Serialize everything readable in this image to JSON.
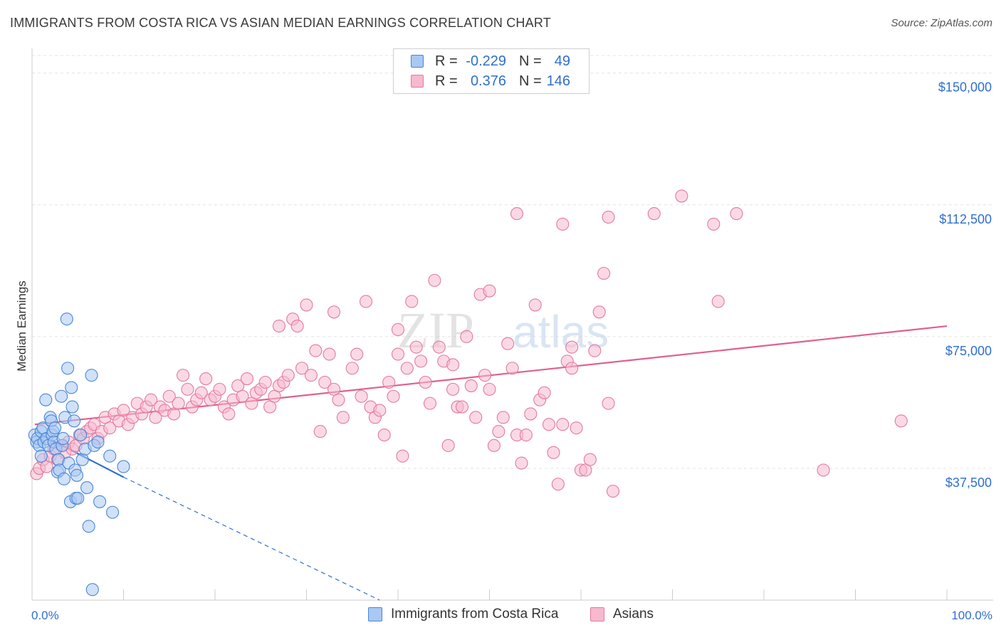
{
  "title": "IMMIGRANTS FROM COSTA RICA VS ASIAN MEDIAN EARNINGS CORRELATION CHART",
  "source": "Source: ZipAtlas.com",
  "watermark": {
    "zip": "ZIP",
    "atlas": "atlas"
  },
  "colors": {
    "blue_fill": "#a9c8f3",
    "blue_stroke": "#4a86d8",
    "blue_line": "#2f6fcf",
    "pink_fill": "#f7b9cd",
    "pink_stroke": "#e27a9f",
    "pink_line": "#e0608e",
    "axis_label": "#2f6fcf",
    "grid": "#e3e3e3"
  },
  "legend": {
    "rows": [
      {
        "r_label": "R =",
        "r_value": "-0.229",
        "n_label": "N =",
        "n_value": "49",
        "series": "blue"
      },
      {
        "r_label": "R =",
        "r_value": "0.376",
        "n_label": "N =",
        "n_value": "146",
        "series": "pink"
      }
    ]
  },
  "bottom_legend": {
    "blue": "Immigrants from Costa Rica",
    "pink": "Asians"
  },
  "chart_data": {
    "type": "scatter",
    "title": "IMMIGRANTS FROM COSTA RICA VS ASIAN MEDIAN EARNINGS CORRELATION CHART",
    "xlabel": "",
    "ylabel": "Median Earnings",
    "xlim": [
      0,
      100
    ],
    "ylim": [
      0,
      155000
    ],
    "x_tick_labels": {
      "left": "0.0%",
      "right": "100.0%"
    },
    "y_ticks": [
      {
        "value": 37500,
        "label": "$37,500"
      },
      {
        "value": 75000,
        "label": "$75,000"
      },
      {
        "value": 112500,
        "label": "$112,500"
      },
      {
        "value": 150000,
        "label": "$150,000"
      }
    ],
    "grid": true,
    "series": [
      {
        "name": "Immigrants from Costa Rica",
        "color": "blue",
        "trend": {
          "x0": 0.3,
          "y0": 48000,
          "x1": 10,
          "y1": 35000,
          "dashed_to_x": 38,
          "dashed_to_y": 0
        },
        "points": [
          [
            0.3,
            47000
          ],
          [
            0.5,
            45000
          ],
          [
            0.6,
            46000
          ],
          [
            0.8,
            44000
          ],
          [
            1.0,
            41000
          ],
          [
            1.0,
            48000
          ],
          [
            1.2,
            49000
          ],
          [
            1.3,
            45000
          ],
          [
            1.5,
            57000
          ],
          [
            1.6,
            46000
          ],
          [
            1.8,
            44000
          ],
          [
            2.0,
            52000
          ],
          [
            2.1,
            51000
          ],
          [
            2.2,
            47000
          ],
          [
            2.3,
            48000
          ],
          [
            2.4,
            45000
          ],
          [
            2.5,
            49000
          ],
          [
            2.6,
            43000
          ],
          [
            2.8,
            36500
          ],
          [
            2.9,
            40000
          ],
          [
            3.0,
            37000
          ],
          [
            3.2,
            58000
          ],
          [
            3.3,
            44000
          ],
          [
            3.4,
            46000
          ],
          [
            3.5,
            34500
          ],
          [
            3.6,
            52000
          ],
          [
            3.8,
            80000
          ],
          [
            3.9,
            66000
          ],
          [
            4.0,
            39000
          ],
          [
            4.2,
            28000
          ],
          [
            4.3,
            60500
          ],
          [
            4.4,
            55000
          ],
          [
            4.6,
            51000
          ],
          [
            4.7,
            37000
          ],
          [
            4.8,
            29000
          ],
          [
            4.9,
            35500
          ],
          [
            5.0,
            29000
          ],
          [
            5.3,
            47000
          ],
          [
            5.5,
            40000
          ],
          [
            5.8,
            43000
          ],
          [
            6.0,
            32000
          ],
          [
            6.2,
            21000
          ],
          [
            6.5,
            64000
          ],
          [
            6.8,
            44000
          ],
          [
            7.2,
            45000
          ],
          [
            7.4,
            28000
          ],
          [
            8.5,
            41000
          ],
          [
            8.8,
            25000
          ],
          [
            10.0,
            38000
          ],
          [
            6.6,
            3000
          ]
        ]
      },
      {
        "name": "Asians",
        "color": "pink",
        "trend": {
          "x0": 0.3,
          "y0": 50000,
          "x1": 100,
          "y1": 78000
        },
        "points": [
          [
            0.5,
            36000
          ],
          [
            0.8,
            37500
          ],
          [
            1.2,
            40000
          ],
          [
            1.6,
            38000
          ],
          [
            2.0,
            41000
          ],
          [
            2.4,
            43000
          ],
          [
            2.8,
            40000
          ],
          [
            3.2,
            44000
          ],
          [
            3.6,
            42000
          ],
          [
            4.0,
            45000
          ],
          [
            4.4,
            43000
          ],
          [
            4.8,
            44000
          ],
          [
            5.2,
            47000
          ],
          [
            5.6,
            46000
          ],
          [
            6.0,
            48000
          ],
          [
            6.4,
            49000
          ],
          [
            6.8,
            50000
          ],
          [
            7.2,
            46000
          ],
          [
            7.6,
            48000
          ],
          [
            8.0,
            52000
          ],
          [
            8.5,
            49000
          ],
          [
            9.0,
            53000
          ],
          [
            9.5,
            51000
          ],
          [
            10.0,
            54000
          ],
          [
            10.5,
            50000
          ],
          [
            11.0,
            52000
          ],
          [
            11.5,
            56000
          ],
          [
            12.0,
            53000
          ],
          [
            12.5,
            55000
          ],
          [
            13.0,
            57000
          ],
          [
            13.5,
            52000
          ],
          [
            14.0,
            55000
          ],
          [
            14.5,
            54000
          ],
          [
            15.0,
            58000
          ],
          [
            15.5,
            53000
          ],
          [
            16.0,
            56000
          ],
          [
            16.5,
            64000
          ],
          [
            17.0,
            60000
          ],
          [
            17.5,
            55000
          ],
          [
            18.0,
            57000
          ],
          [
            18.5,
            59000
          ],
          [
            19.0,
            63000
          ],
          [
            19.5,
            57000
          ],
          [
            20.0,
            58000
          ],
          [
            20.5,
            60000
          ],
          [
            21.0,
            55000
          ],
          [
            21.5,
            53000
          ],
          [
            22.0,
            57000
          ],
          [
            22.5,
            61000
          ],
          [
            23.0,
            58000
          ],
          [
            23.5,
            63000
          ],
          [
            24.0,
            56000
          ],
          [
            24.5,
            59000
          ],
          [
            25.0,
            60000
          ],
          [
            25.5,
            62000
          ],
          [
            26.0,
            55000
          ],
          [
            26.5,
            58000
          ],
          [
            27.0,
            61000
          ],
          [
            27.5,
            62000
          ],
          [
            28.0,
            64000
          ],
          [
            28.5,
            80000
          ],
          [
            29.0,
            78000
          ],
          [
            29.5,
            66000
          ],
          [
            30.0,
            84000
          ],
          [
            30.5,
            64000
          ],
          [
            31.0,
            71000
          ],
          [
            31.5,
            48000
          ],
          [
            32.0,
            62000
          ],
          [
            32.5,
            70000
          ],
          [
            33.0,
            60000
          ],
          [
            33.5,
            57000
          ],
          [
            34.0,
            52000
          ],
          [
            35.0,
            66000
          ],
          [
            35.5,
            70000
          ],
          [
            36.0,
            58000
          ],
          [
            36.5,
            85000
          ],
          [
            37.0,
            55000
          ],
          [
            37.5,
            52000
          ],
          [
            38.0,
            54000
          ],
          [
            38.5,
            47000
          ],
          [
            39.0,
            62000
          ],
          [
            39.5,
            58000
          ],
          [
            40.0,
            70000
          ],
          [
            40.5,
            41000
          ],
          [
            41.0,
            66000
          ],
          [
            41.5,
            85000
          ],
          [
            42.0,
            72000
          ],
          [
            42.5,
            68000
          ],
          [
            43.0,
            62000
          ],
          [
            43.5,
            56000
          ],
          [
            44.0,
            91000
          ],
          [
            44.5,
            72000
          ],
          [
            45.0,
            68000
          ],
          [
            45.5,
            44000
          ],
          [
            46.0,
            60000
          ],
          [
            46.5,
            55000
          ],
          [
            47.0,
            55000
          ],
          [
            47.5,
            75000
          ],
          [
            48.0,
            61000
          ],
          [
            48.5,
            52000
          ],
          [
            49.0,
            87000
          ],
          [
            49.5,
            64000
          ],
          [
            50.0,
            60000
          ],
          [
            50.5,
            44000
          ],
          [
            51.0,
            48000
          ],
          [
            51.5,
            52000
          ],
          [
            52.0,
            73000
          ],
          [
            52.5,
            66000
          ],
          [
            53.0,
            47000
          ],
          [
            53.5,
            39000
          ],
          [
            54.0,
            47000
          ],
          [
            54.5,
            53000
          ],
          [
            55.0,
            84000
          ],
          [
            55.5,
            57000
          ],
          [
            56.0,
            59000
          ],
          [
            56.5,
            50000
          ],
          [
            57.0,
            42000
          ],
          [
            57.5,
            33000
          ],
          [
            58.0,
            50000
          ],
          [
            58.5,
            68000
          ],
          [
            59.0,
            66000
          ],
          [
            59.5,
            49000
          ],
          [
            60.0,
            37000
          ],
          [
            60.5,
            37000
          ],
          [
            61.0,
            40000
          ],
          [
            61.5,
            71000
          ],
          [
            62.0,
            82000
          ],
          [
            62.5,
            93000
          ],
          [
            63.0,
            56000
          ],
          [
            63.5,
            31000
          ],
          [
            50.0,
            88000
          ],
          [
            53.0,
            110000
          ],
          [
            58.0,
            107000
          ],
          [
            63.0,
            109000
          ],
          [
            68.0,
            110000
          ],
          [
            71.0,
            115000
          ],
          [
            74.5,
            107000
          ],
          [
            75.0,
            85000
          ],
          [
            77.0,
            110000
          ],
          [
            86.5,
            37000
          ],
          [
            95.0,
            51000
          ],
          [
            59.0,
            72000
          ],
          [
            46.0,
            67000
          ],
          [
            40.0,
            77000
          ],
          [
            33.0,
            82000
          ],
          [
            27.0,
            78000
          ]
        ]
      }
    ]
  }
}
